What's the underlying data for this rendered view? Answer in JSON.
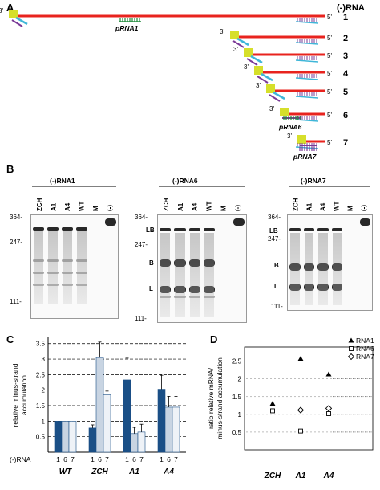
{
  "panelA": {
    "letter": "A",
    "header": "(-)RNA",
    "end3": "3'",
    "end5": "5'",
    "rows": [
      {
        "n": "1"
      },
      {
        "n": "2"
      },
      {
        "n": "3"
      },
      {
        "n": "4"
      },
      {
        "n": "5"
      },
      {
        "n": "6"
      },
      {
        "n": "7"
      }
    ],
    "labels": {
      "prna1": "pRNA1",
      "prna6": "pRNA6",
      "prna7": "pRNA7"
    },
    "colors": {
      "red": "#e8231e",
      "yellow": "#d6df2b",
      "cyan": "#3fb6d8",
      "purple": "#7a3b97",
      "green": "#1f8a3a"
    }
  },
  "panelB": {
    "letter": "B",
    "gels": [
      {
        "title": "(-)RNA1",
        "lanes": [
          "ZCH",
          "A1",
          "A4",
          "WT",
          "M",
          "(-)"
        ],
        "markers": [
          "364-",
          "247-",
          "111-"
        ]
      },
      {
        "title": "(-)RNA6",
        "lanes": [
          "ZCH",
          "A1",
          "A4",
          "WT",
          "M",
          "(-)"
        ],
        "markers": [
          "364-",
          "247-",
          "111-"
        ],
        "bands": [
          "LB",
          "B",
          "L"
        ]
      },
      {
        "title": "(-)RNA7",
        "lanes": [
          "ZCH",
          "A1",
          "A4",
          "WT",
          "M",
          "(-)"
        ],
        "markers": [
          "364-",
          "247-",
          "111-"
        ],
        "bands": [
          "LB",
          "B",
          "L"
        ]
      }
    ]
  },
  "panelC": {
    "letter": "C",
    "ylabel1": "relative minus-strand",
    "ylabel2": "accumulation",
    "xrow_label": "(-)RNA",
    "chart_data": {
      "type": "bar",
      "groups": [
        "WT",
        "ZCH",
        "A1",
        "A4"
      ],
      "subcategories": [
        "1",
        "6",
        "7"
      ],
      "series": [
        {
          "values": [
            1.0,
            0.78,
            2.33,
            2.03
          ],
          "errors": [
            0,
            0.1,
            0.7,
            0.45
          ],
          "color": "#1a4f86"
        },
        {
          "values": [
            1.0,
            3.05,
            0.6,
            1.45
          ],
          "errors": [
            0,
            0.5,
            0.2,
            0.35
          ],
          "color": "#c8d4e2"
        },
        {
          "values": [
            1.0,
            1.85,
            0.65,
            1.45
          ],
          "errors": [
            0,
            0.12,
            0.25,
            0.35
          ],
          "color": "#eef2f7"
        }
      ],
      "yticks": [
        "0.5",
        "1",
        "1.5",
        "2",
        "2.5",
        "3",
        "3.5"
      ],
      "ylim": [
        0,
        3.7
      ]
    }
  },
  "panelD": {
    "letter": "D",
    "ylabel1": "ratio relative mRNA/",
    "ylabel2": "minus-strand accumulation",
    "chart_data": {
      "type": "scatter",
      "categories": [
        "ZCH",
        "A1",
        "A4"
      ],
      "series": [
        {
          "name": "RNA1",
          "marker": "triangle",
          "values": [
            1.3,
            2.57,
            2.13
          ]
        },
        {
          "name": "RNA6",
          "marker": "square",
          "values": [
            1.1,
            0.53,
            1.02
          ]
        },
        {
          "name": "RNA7",
          "marker": "diamond",
          "values": [
            null,
            1.12,
            1.17
          ]
        }
      ],
      "yticks": [
        "0.5",
        "1",
        "1.5",
        "2",
        "2.5"
      ],
      "ylim": [
        0,
        2.9
      ]
    }
  }
}
